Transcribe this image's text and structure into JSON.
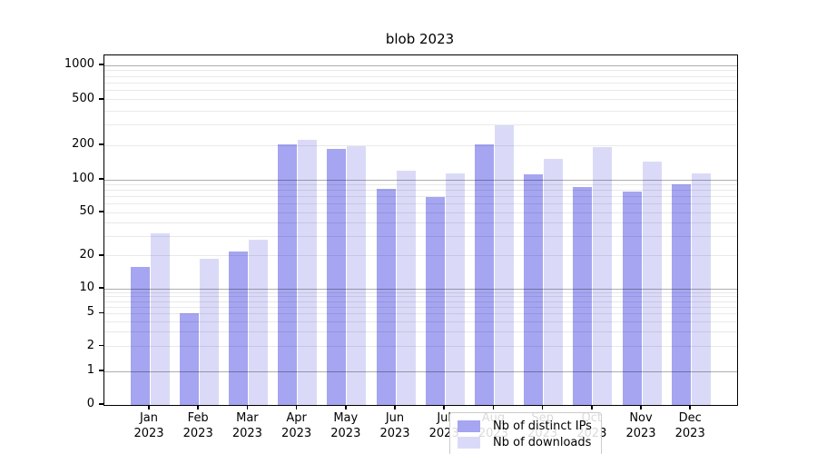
{
  "title": "blob 2023",
  "legend": {
    "items": [
      {
        "label": "Nb of distinct IPs",
        "color": "#a5a5f1"
      },
      {
        "label": "Nb of downloads",
        "color": "#dadaf8"
      }
    ]
  },
  "colors": {
    "series_dark": "#a5a5f1",
    "series_light": "#dadaf8",
    "grid_major": "#b0b0b0",
    "grid_minor": "#e9e9e9",
    "axis": "#000000"
  },
  "chart_data": {
    "type": "bar",
    "title": "blob 2023",
    "categories": [
      "Jan\n2023",
      "Feb\n2023",
      "Mar\n2023",
      "Apr\n2023",
      "May\n2023",
      "Jun\n2023",
      "Jul\n2023",
      "Aug\n2023",
      "Sep\n2023",
      "Oct\n2023",
      "Nov\n2023",
      "Dec\n2023"
    ],
    "series": [
      {
        "name": "Nb of distinct IPs",
        "values": [
          16,
          5,
          22,
          204,
          188,
          82,
          70,
          204,
          112,
          86,
          78,
          91
        ]
      },
      {
        "name": "Nb of downloads",
        "values": [
          32,
          19,
          28,
          224,
          196,
          121,
          114,
          300,
          151,
          193,
          144,
          114
        ]
      }
    ],
    "xlabel": "",
    "ylabel": "",
    "yscale": "symlog",
    "ylim": [
      0,
      1230
    ],
    "yticks_labeled": [
      0,
      1,
      2,
      5,
      10,
      20,
      50,
      100,
      200,
      500,
      1000
    ],
    "yticks_minor": [
      2,
      3,
      4,
      5,
      6,
      7,
      8,
      9,
      20,
      30,
      40,
      50,
      60,
      70,
      80,
      90,
      200,
      300,
      400,
      500,
      600,
      700,
      800,
      900
    ],
    "yticks_major_grid": [
      1,
      10,
      100,
      1000
    ],
    "grid": true,
    "legend_position": "lower center"
  }
}
